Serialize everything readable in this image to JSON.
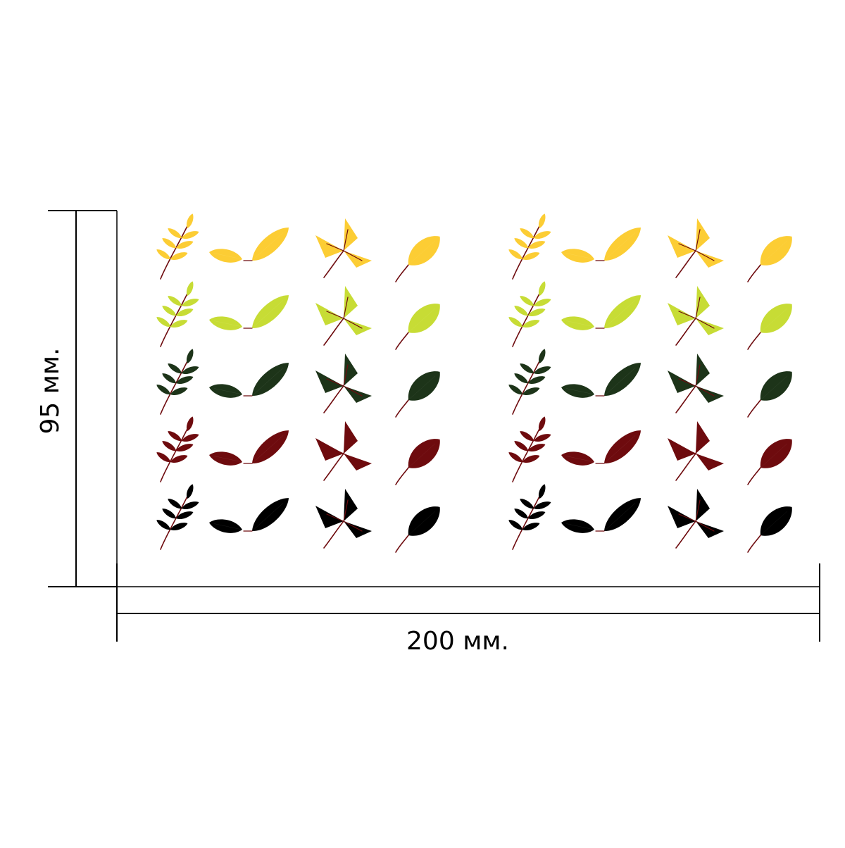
{
  "dimensions": {
    "width_label": "200 мм.",
    "height_label": "95 мм."
  },
  "palette": {
    "yellow": "#fccd34",
    "lime": "#c7dc35",
    "dark_green": "#1d3419",
    "burgundy": "#6e0b0e",
    "black": "#000000",
    "stem": "#6e0b0e"
  },
  "sheet": {
    "panels": 2,
    "rows": [
      "yellow",
      "lime",
      "dark_green",
      "burgundy",
      "black"
    ],
    "leaf_types": [
      "branch-leaf",
      "double-leaf",
      "ivy-leaf",
      "single-leaf"
    ]
  }
}
